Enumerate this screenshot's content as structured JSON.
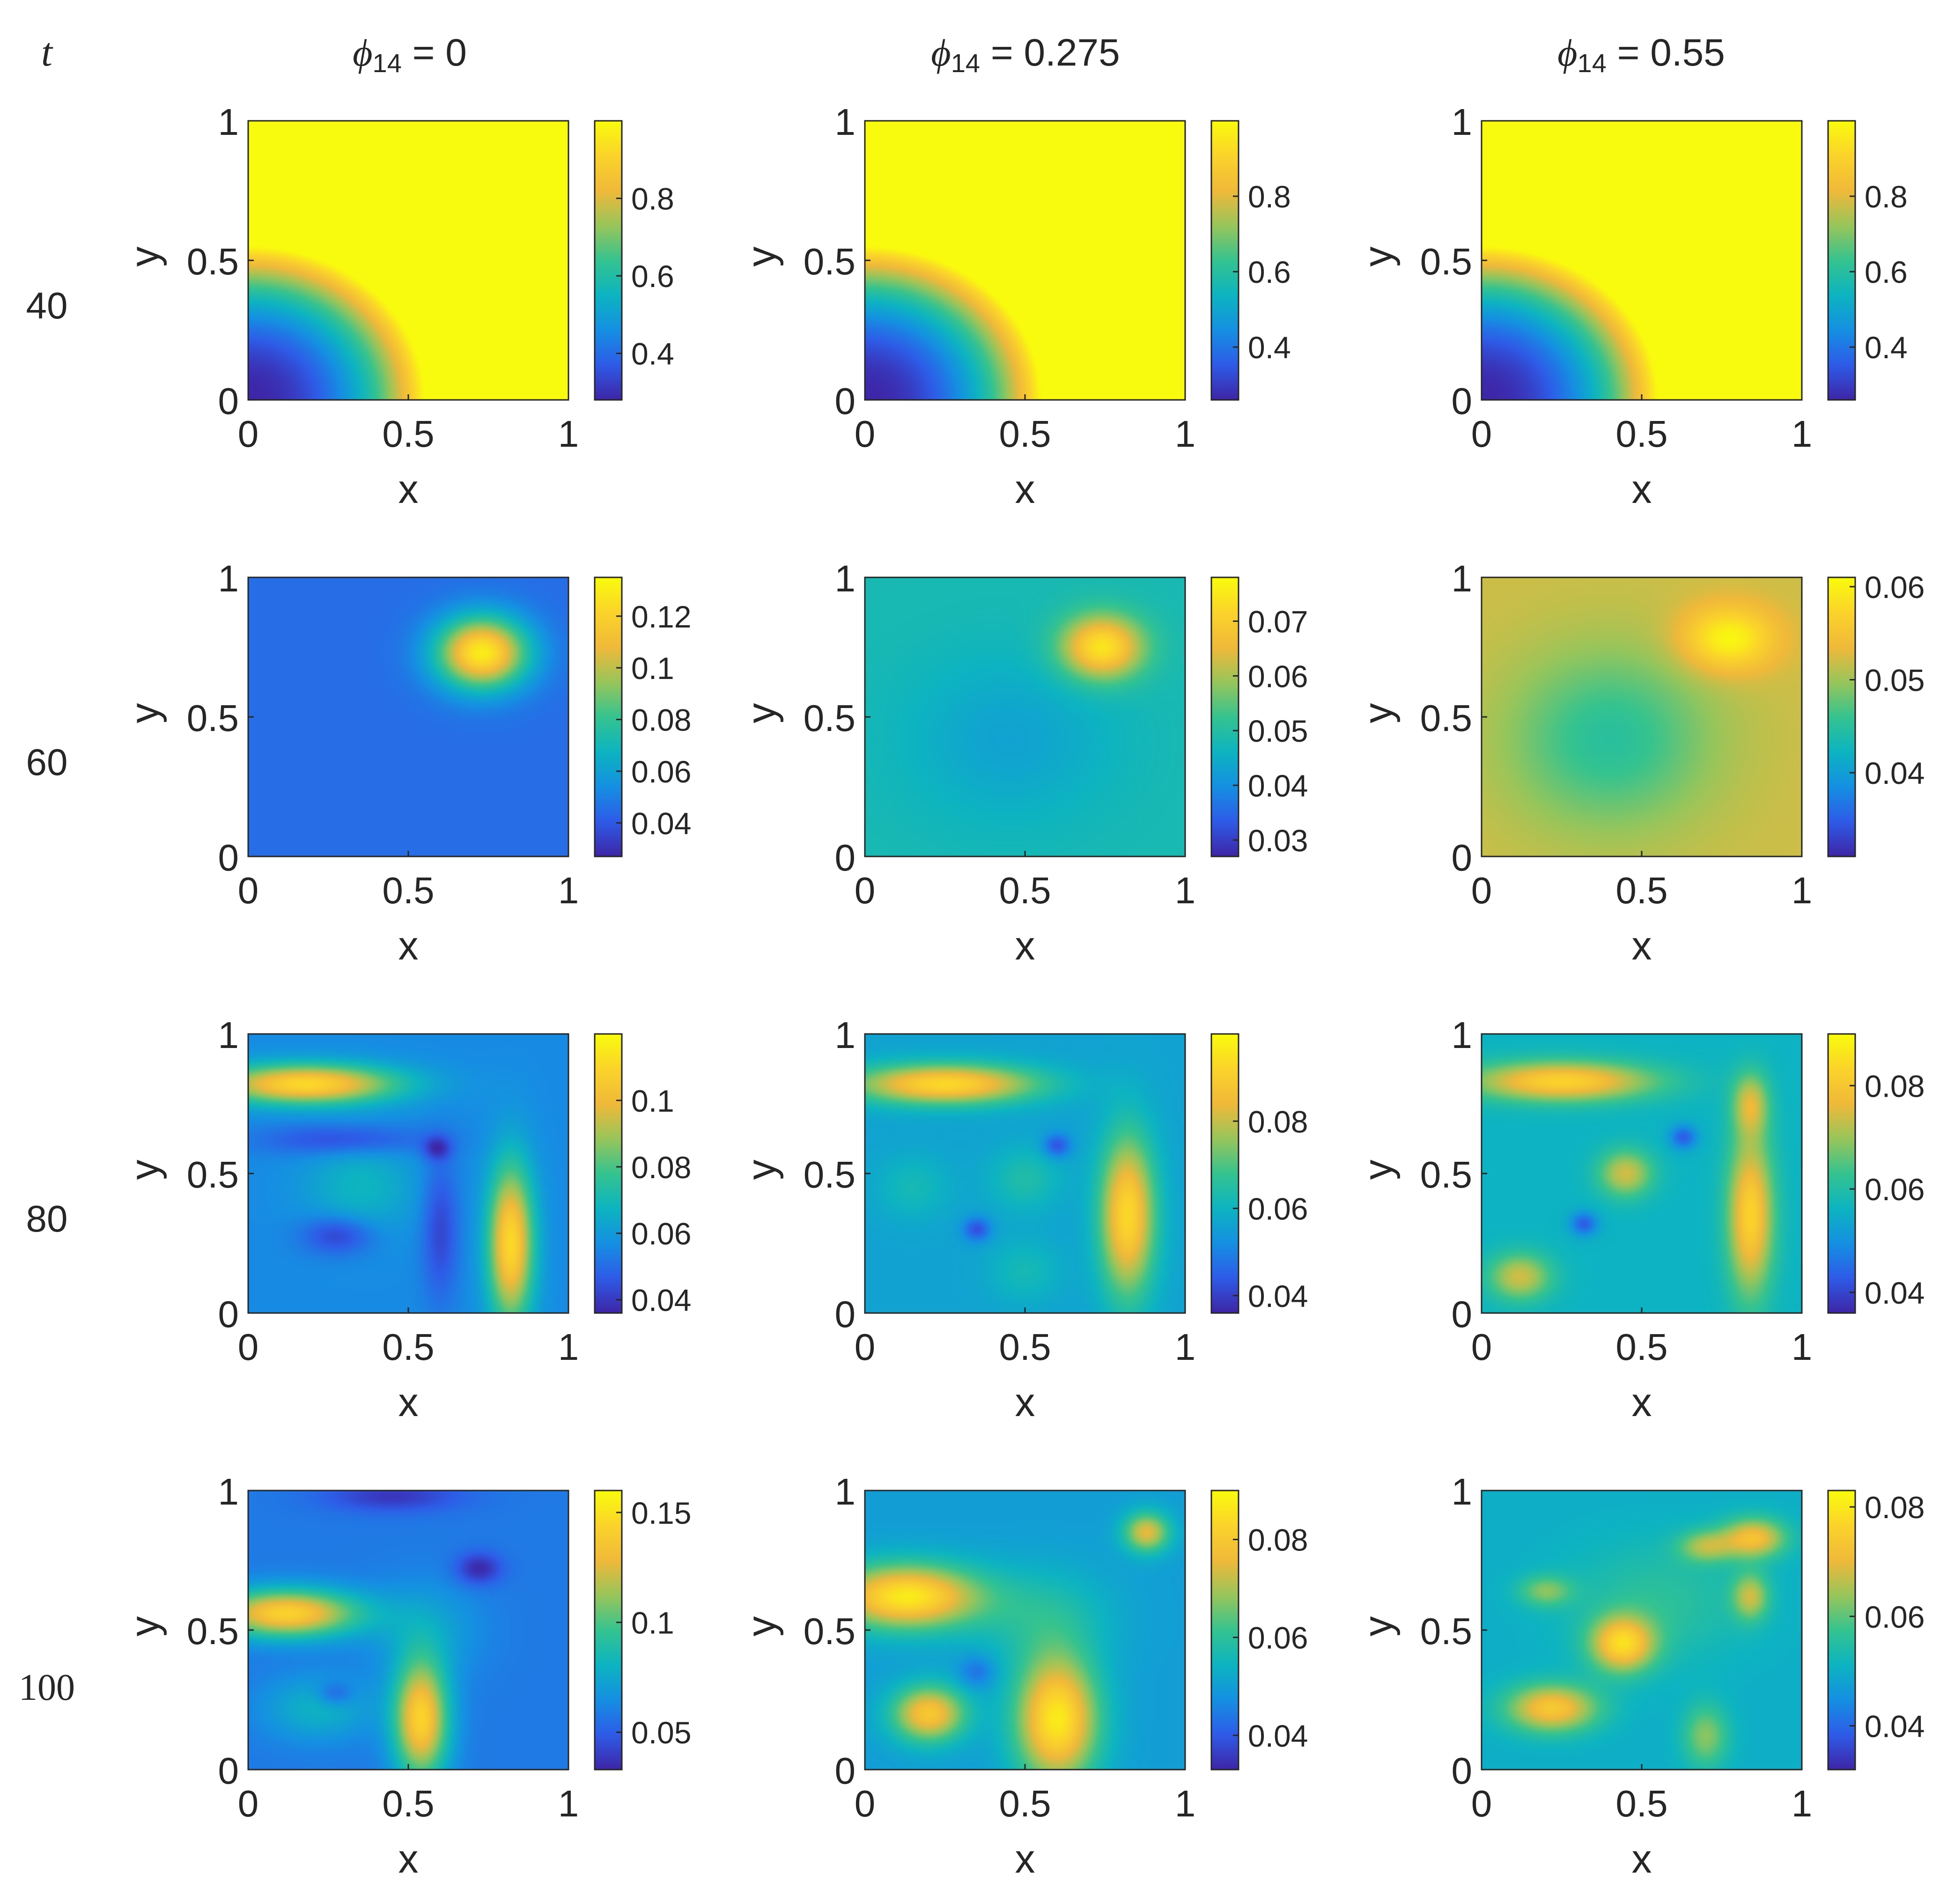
{
  "time_header": "t",
  "column_headers": [
    {
      "symbol": "ϕ",
      "subscript": "14",
      "value_text": " = 0"
    },
    {
      "symbol": "ϕ",
      "subscript": "14",
      "value_text": " = 0.275"
    },
    {
      "symbol": "ϕ",
      "subscript": "14",
      "value_text": " = 0.55"
    }
  ],
  "row_labels": [
    "40",
    "60",
    "80",
    "100"
  ],
  "colors": {
    "colormap": [
      "#3e26a8",
      "#2e5ce8",
      "#1590e2",
      "#0db4c1",
      "#35c38f",
      "#98c55b",
      "#f0b93a",
      "#fbd32b",
      "#f9fb0e"
    ],
    "axis": "#262626",
    "background": "#ffffff"
  },
  "chart_data": [
    {
      "type": "heatmap",
      "row": 0,
      "col": 0,
      "time": 40,
      "phi14": 0,
      "pattern": "front",
      "clim": [
        0.28,
        1.0
      ],
      "front_radius": 0.55,
      "colorbar_ticks": [
        0.4,
        0.6,
        0.8
      ],
      "colorbar_tick_labels": [
        "0.4",
        "0.6",
        "0.8"
      ],
      "xlabel": "x",
      "ylabel": "y",
      "xlim": [
        0,
        1
      ],
      "ylim": [
        0,
        1
      ],
      "xtick_labels": [
        "0",
        "0.5",
        "1"
      ],
      "ytick_labels": [
        "0",
        "0.5",
        "1"
      ],
      "blobs": []
    },
    {
      "type": "heatmap",
      "row": 0,
      "col": 1,
      "time": 40,
      "phi14": 0.275,
      "pattern": "front",
      "clim": [
        0.26,
        1.0
      ],
      "front_radius": 0.55,
      "colorbar_ticks": [
        0.4,
        0.6,
        0.8
      ],
      "colorbar_tick_labels": [
        "0.4",
        "0.6",
        "0.8"
      ],
      "xlabel": "x",
      "ylabel": "y",
      "xlim": [
        0,
        1
      ],
      "ylim": [
        0,
        1
      ],
      "xtick_labels": [
        "0",
        "0.5",
        "1"
      ],
      "ytick_labels": [
        "0",
        "0.5",
        "1"
      ],
      "blobs": []
    },
    {
      "type": "heatmap",
      "row": 0,
      "col": 2,
      "time": 40,
      "phi14": 0.55,
      "pattern": "front",
      "clim": [
        0.26,
        1.0
      ],
      "front_radius": 0.55,
      "colorbar_ticks": [
        0.4,
        0.6,
        0.8
      ],
      "colorbar_tick_labels": [
        "0.4",
        "0.6",
        "0.8"
      ],
      "xlabel": "x",
      "ylabel": "y",
      "xlim": [
        0,
        1
      ],
      "ylim": [
        0,
        1
      ],
      "xtick_labels": [
        "0",
        "0.5",
        "1"
      ],
      "ytick_labels": [
        "0",
        "0.5",
        "1"
      ],
      "blobs": []
    },
    {
      "type": "heatmap",
      "row": 1,
      "col": 0,
      "time": 60,
      "phi14": 0,
      "pattern": "blobs",
      "clim": [
        0.027,
        0.135
      ],
      "base": 0.045,
      "colorbar_ticks": [
        0.04,
        0.06,
        0.08,
        0.1,
        0.12
      ],
      "colorbar_tick_labels": [
        "0.04",
        "0.06",
        "0.08",
        "0.1",
        "0.12"
      ],
      "xlabel": "x",
      "ylabel": "y",
      "xlim": [
        0,
        1
      ],
      "ylim": [
        0,
        1
      ],
      "xtick_labels": [
        "0",
        "0.5",
        "1"
      ],
      "ytick_labels": [
        "0",
        "0.5",
        "1"
      ],
      "blobs": [
        {
          "x": 0.73,
          "y": 0.73,
          "sx": 0.1,
          "sy": 0.09,
          "amp": 0.085
        }
      ]
    },
    {
      "type": "heatmap",
      "row": 1,
      "col": 1,
      "time": 60,
      "phi14": 0.275,
      "pattern": "blobs",
      "clim": [
        0.027,
        0.078
      ],
      "base": 0.048,
      "colorbar_ticks": [
        0.03,
        0.04,
        0.05,
        0.06,
        0.07
      ],
      "colorbar_tick_labels": [
        "0.03",
        "0.04",
        "0.05",
        "0.06",
        "0.07"
      ],
      "xlabel": "x",
      "ylabel": "y",
      "xlim": [
        0,
        1
      ],
      "ylim": [
        0,
        1
      ],
      "xtick_labels": [
        "0",
        "0.5",
        "1"
      ],
      "ytick_labels": [
        "0",
        "0.5",
        "1"
      ],
      "blobs": [
        {
          "x": 0.74,
          "y": 0.75,
          "sx": 0.09,
          "sy": 0.08,
          "amp": 0.027
        },
        {
          "x": 0.45,
          "y": 0.42,
          "sx": 0.22,
          "sy": 0.2,
          "amp": -0.005
        }
      ]
    },
    {
      "type": "heatmap",
      "row": 1,
      "col": 2,
      "time": 60,
      "phi14": 0.55,
      "pattern": "blobs",
      "clim": [
        0.031,
        0.061
      ],
      "base": 0.052,
      "colorbar_ticks": [
        0.04,
        0.05,
        0.06
      ],
      "colorbar_tick_labels": [
        "0.04",
        "0.05",
        "0.06"
      ],
      "xlabel": "x",
      "ylabel": "y",
      "xlim": [
        0,
        1
      ],
      "ylim": [
        0,
        1
      ],
      "xtick_labels": [
        "0",
        "0.5",
        "1"
      ],
      "ytick_labels": [
        "0",
        "0.5",
        "1"
      ],
      "blobs": [
        {
          "x": 0.77,
          "y": 0.78,
          "sx": 0.1,
          "sy": 0.08,
          "amp": 0.009
        },
        {
          "x": 0.4,
          "y": 0.42,
          "sx": 0.22,
          "sy": 0.22,
          "amp": -0.007
        }
      ]
    },
    {
      "type": "heatmap",
      "row": 2,
      "col": 0,
      "time": 80,
      "phi14": 0,
      "pattern": "blobs",
      "clim": [
        0.036,
        0.12
      ],
      "base": 0.056,
      "colorbar_ticks": [
        0.04,
        0.06,
        0.08,
        0.1
      ],
      "colorbar_tick_labels": [
        "0.04",
        "0.06",
        "0.08",
        "0.1"
      ],
      "xlabel": "x",
      "ylabel": "y",
      "xlim": [
        0,
        1
      ],
      "ylim": [
        0,
        1
      ],
      "xtick_labels": [
        "0",
        "0.5",
        "1"
      ],
      "ytick_labels": [
        "0",
        "0.5",
        "1"
      ],
      "blobs": [
        {
          "x": 0.18,
          "y": 0.82,
          "sx": 0.2,
          "sy": 0.05,
          "amp": 0.055
        },
        {
          "x": 0.82,
          "y": 0.25,
          "sx": 0.05,
          "sy": 0.2,
          "amp": 0.055
        },
        {
          "x": 0.3,
          "y": 0.62,
          "sx": 0.18,
          "sy": 0.04,
          "amp": -0.014
        },
        {
          "x": 0.6,
          "y": 0.3,
          "sx": 0.04,
          "sy": 0.18,
          "amp": -0.014
        },
        {
          "x": 0.28,
          "y": 0.28,
          "sx": 0.08,
          "sy": 0.05,
          "amp": -0.016
        },
        {
          "x": 0.59,
          "y": 0.59,
          "sx": 0.03,
          "sy": 0.03,
          "amp": -0.015
        },
        {
          "x": 0.35,
          "y": 0.45,
          "sx": 0.12,
          "sy": 0.12,
          "amp": 0.012
        }
      ]
    },
    {
      "type": "heatmap",
      "row": 2,
      "col": 1,
      "time": 80,
      "phi14": 0.275,
      "pattern": "blobs",
      "clim": [
        0.036,
        0.1
      ],
      "base": 0.056,
      "colorbar_ticks": [
        0.04,
        0.06,
        0.08
      ],
      "colorbar_tick_labels": [
        "0.04",
        "0.06",
        "0.08"
      ],
      "xlabel": "x",
      "ylabel": "y",
      "xlim": [
        0,
        1
      ],
      "ylim": [
        0,
        1
      ],
      "xtick_labels": [
        "0",
        "0.5",
        "1"
      ],
      "ytick_labels": [
        "0",
        "0.5",
        "1"
      ],
      "blobs": [
        {
          "x": 0.25,
          "y": 0.82,
          "sx": 0.2,
          "sy": 0.05,
          "amp": 0.037
        },
        {
          "x": 0.82,
          "y": 0.35,
          "sx": 0.06,
          "sy": 0.2,
          "amp": 0.037
        },
        {
          "x": 0.35,
          "y": 0.3,
          "sx": 0.03,
          "sy": 0.03,
          "amp": -0.014
        },
        {
          "x": 0.6,
          "y": 0.6,
          "sx": 0.03,
          "sy": 0.03,
          "amp": -0.014
        },
        {
          "x": 0.5,
          "y": 0.48,
          "sx": 0.08,
          "sy": 0.08,
          "amp": 0.008
        },
        {
          "x": 0.15,
          "y": 0.45,
          "sx": 0.08,
          "sy": 0.08,
          "amp": 0.006
        },
        {
          "x": 0.5,
          "y": 0.15,
          "sx": 0.08,
          "sy": 0.08,
          "amp": 0.006
        }
      ]
    },
    {
      "type": "heatmap",
      "row": 2,
      "col": 2,
      "time": 80,
      "phi14": 0.55,
      "pattern": "blobs",
      "clim": [
        0.036,
        0.09
      ],
      "base": 0.056,
      "colorbar_ticks": [
        0.04,
        0.06,
        0.08
      ],
      "colorbar_tick_labels": [
        "0.04",
        "0.06",
        "0.08"
      ],
      "xlabel": "x",
      "ylabel": "y",
      "xlim": [
        0,
        1
      ],
      "ylim": [
        0,
        1
      ],
      "xtick_labels": [
        "0",
        "0.5",
        "1"
      ],
      "ytick_labels": [
        "0",
        "0.5",
        "1"
      ],
      "blobs": [
        {
          "x": 0.25,
          "y": 0.83,
          "sx": 0.2,
          "sy": 0.05,
          "amp": 0.027
        },
        {
          "x": 0.84,
          "y": 0.35,
          "sx": 0.05,
          "sy": 0.2,
          "amp": 0.027
        },
        {
          "x": 0.84,
          "y": 0.75,
          "sx": 0.04,
          "sy": 0.08,
          "amp": 0.017
        },
        {
          "x": 0.45,
          "y": 0.5,
          "sx": 0.06,
          "sy": 0.06,
          "amp": 0.018
        },
        {
          "x": 0.12,
          "y": 0.13,
          "sx": 0.07,
          "sy": 0.06,
          "amp": 0.018
        },
        {
          "x": 0.32,
          "y": 0.32,
          "sx": 0.03,
          "sy": 0.03,
          "amp": -0.013
        },
        {
          "x": 0.63,
          "y": 0.63,
          "sx": 0.03,
          "sy": 0.03,
          "amp": -0.013
        }
      ]
    },
    {
      "type": "heatmap",
      "row": 3,
      "col": 0,
      "time": 100,
      "phi14": 0,
      "pattern": "blobs",
      "clim": [
        0.033,
        0.16
      ],
      "base": 0.058,
      "colorbar_ticks": [
        0.05,
        0.1,
        0.15
      ],
      "colorbar_tick_labels": [
        "0.05",
        "0.1",
        "0.15"
      ],
      "xlabel": "x",
      "ylabel": "y",
      "xlim": [
        0,
        1
      ],
      "ylim": [
        0,
        1
      ],
      "xtick_labels": [
        "0",
        "0.5",
        "1"
      ],
      "ytick_labels": [
        "0",
        "0.5",
        "1"
      ],
      "blobs": [
        {
          "x": 0.12,
          "y": 0.56,
          "sx": 0.16,
          "sy": 0.06,
          "amp": 0.085
        },
        {
          "x": 0.54,
          "y": 0.18,
          "sx": 0.06,
          "sy": 0.15,
          "amp": 0.085
        },
        {
          "x": 0.72,
          "y": 0.72,
          "sx": 0.05,
          "sy": 0.04,
          "amp": -0.025
        },
        {
          "x": 0.27,
          "y": 0.27,
          "sx": 0.04,
          "sy": 0.03,
          "amp": -0.018
        },
        {
          "x": 0.45,
          "y": 0.98,
          "sx": 0.15,
          "sy": 0.04,
          "amp": -0.02
        },
        {
          "x": 0.22,
          "y": 0.22,
          "sx": 0.12,
          "sy": 0.08,
          "amp": 0.022
        },
        {
          "x": 0.55,
          "y": 0.5,
          "sx": 0.12,
          "sy": 0.12,
          "amp": 0.015
        }
      ]
    },
    {
      "type": "heatmap",
      "row": 3,
      "col": 1,
      "time": 100,
      "phi14": 0.275,
      "pattern": "blobs",
      "clim": [
        0.033,
        0.09
      ],
      "base": 0.05,
      "colorbar_ticks": [
        0.04,
        0.06,
        0.08
      ],
      "colorbar_tick_labels": [
        "0.04",
        "0.06",
        "0.08"
      ],
      "xlabel": "x",
      "ylabel": "y",
      "xlim": [
        0,
        1
      ],
      "ylim": [
        0,
        1
      ],
      "xtick_labels": [
        "0",
        "0.5",
        "1"
      ],
      "ytick_labels": [
        "0",
        "0.5",
        "1"
      ],
      "blobs": [
        {
          "x": 0.13,
          "y": 0.62,
          "sx": 0.16,
          "sy": 0.08,
          "amp": 0.037
        },
        {
          "x": 0.6,
          "y": 0.18,
          "sx": 0.09,
          "sy": 0.16,
          "amp": 0.037
        },
        {
          "x": 0.2,
          "y": 0.2,
          "sx": 0.08,
          "sy": 0.07,
          "amp": 0.03
        },
        {
          "x": 0.88,
          "y": 0.85,
          "sx": 0.05,
          "sy": 0.05,
          "amp": 0.025
        },
        {
          "x": 0.55,
          "y": 0.55,
          "sx": 0.15,
          "sy": 0.12,
          "amp": 0.008
        },
        {
          "x": 0.35,
          "y": 0.35,
          "sx": 0.04,
          "sy": 0.04,
          "amp": -0.008
        }
      ]
    },
    {
      "type": "heatmap",
      "row": 3,
      "col": 2,
      "time": 100,
      "phi14": 0.55,
      "pattern": "blobs",
      "clim": [
        0.032,
        0.083
      ],
      "base": 0.05,
      "colorbar_ticks": [
        0.04,
        0.06,
        0.08
      ],
      "colorbar_tick_labels": [
        "0.04",
        "0.06",
        "0.08"
      ],
      "xlabel": "x",
      "ylabel": "y",
      "xlim": [
        0,
        1
      ],
      "ylim": [
        0,
        1
      ],
      "xtick_labels": [
        "0",
        "0.5",
        "1"
      ],
      "ytick_labels": [
        "0",
        "0.5",
        "1"
      ],
      "blobs": [
        {
          "x": 0.44,
          "y": 0.45,
          "sx": 0.07,
          "sy": 0.07,
          "amp": 0.026
        },
        {
          "x": 0.22,
          "y": 0.22,
          "sx": 0.1,
          "sy": 0.06,
          "amp": 0.024
        },
        {
          "x": 0.85,
          "y": 0.83,
          "sx": 0.07,
          "sy": 0.05,
          "amp": 0.022
        },
        {
          "x": 0.84,
          "y": 0.62,
          "sx": 0.04,
          "sy": 0.06,
          "amp": 0.016
        },
        {
          "x": 0.7,
          "y": 0.8,
          "sx": 0.06,
          "sy": 0.04,
          "amp": 0.014
        },
        {
          "x": 0.2,
          "y": 0.64,
          "sx": 0.06,
          "sy": 0.04,
          "amp": 0.012
        },
        {
          "x": 0.7,
          "y": 0.12,
          "sx": 0.05,
          "sy": 0.08,
          "amp": 0.013
        },
        {
          "x": 0.55,
          "y": 0.6,
          "sx": 0.2,
          "sy": 0.15,
          "amp": 0.006
        }
      ]
    }
  ]
}
